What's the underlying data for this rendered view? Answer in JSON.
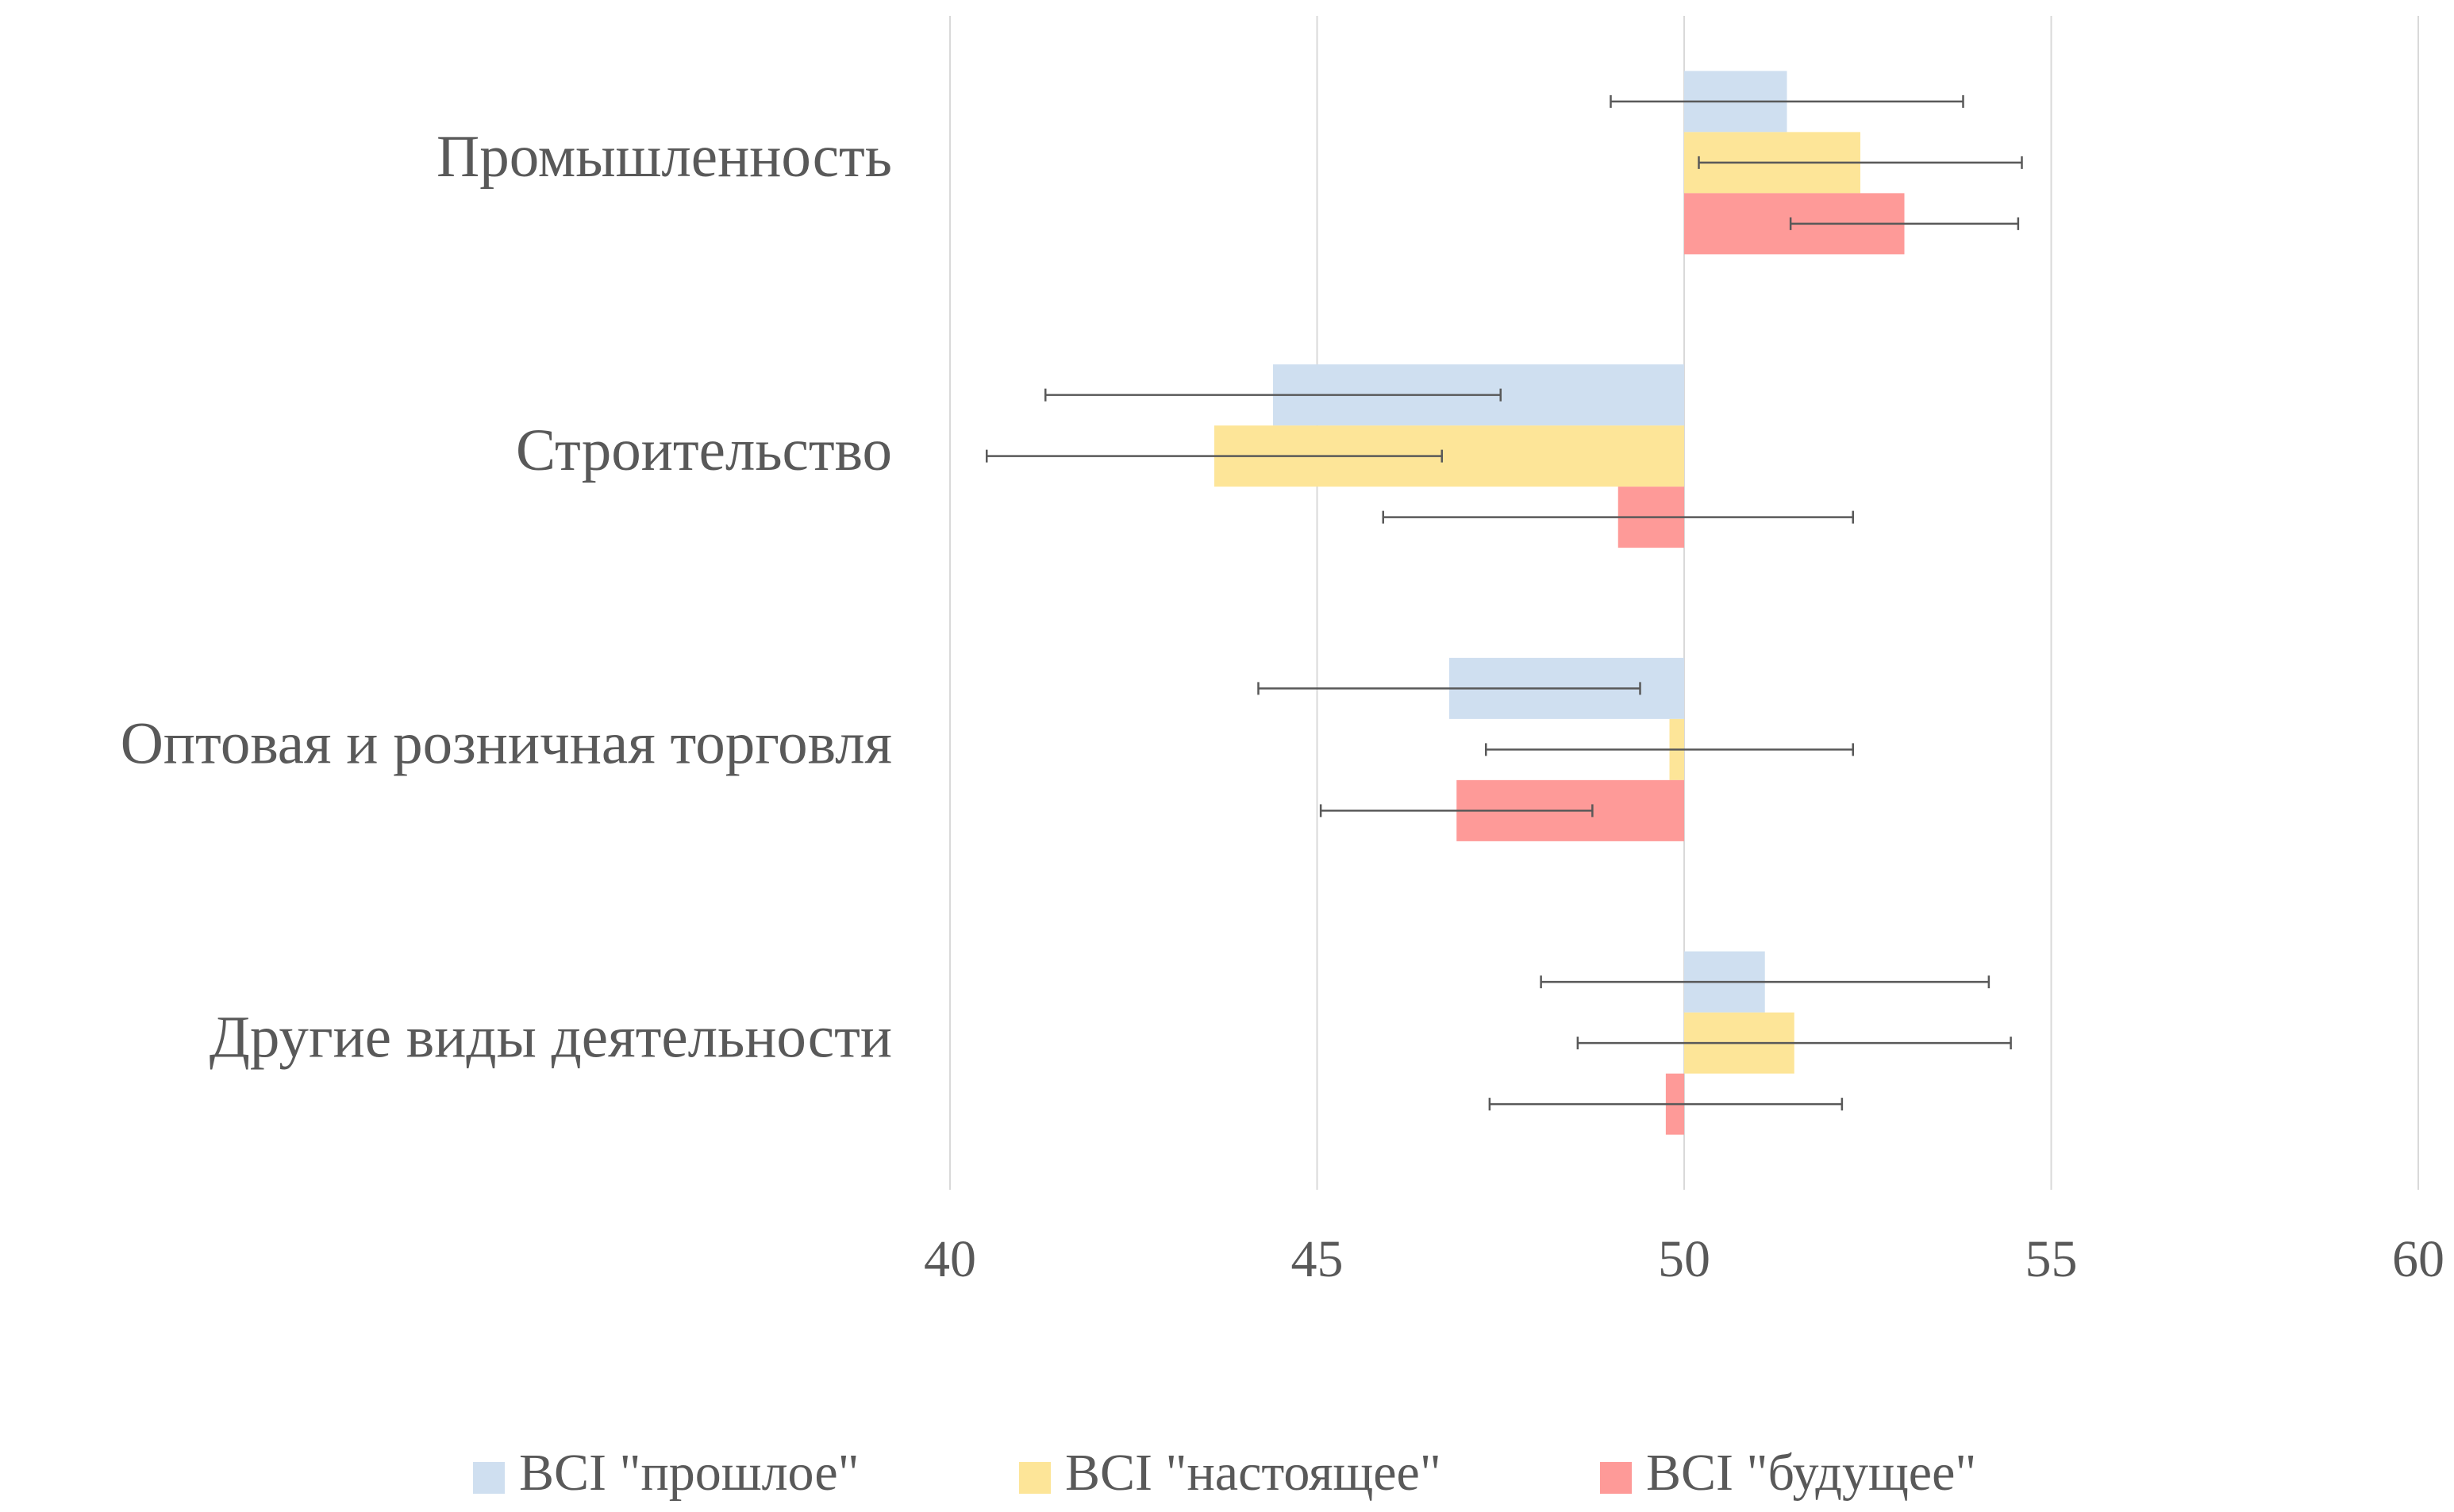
{
  "chart_data": {
    "type": "hbar",
    "categories": [
      "Промышленность",
      "Строительство",
      "Оптовая и розничная торговля",
      "Другие виды деятельности"
    ],
    "base": 50,
    "series": [
      {
        "name": "BCI \"прошлое\"",
        "color": "#cfdff0",
        "values": [
          51.4,
          44.4,
          46.8,
          51.1
        ],
        "errors": [
          2.4,
          3.1,
          2.6,
          3.05
        ]
      },
      {
        "name": "BCI \"настоящее\"",
        "color": "#fde598",
        "values": [
          52.4,
          43.6,
          49.8,
          51.5
        ],
        "errors": [
          2.2,
          3.1,
          2.5,
          2.95
        ]
      },
      {
        "name": "BCI \"будущее\"",
        "color": "#fe9a98",
        "values": [
          53.0,
          49.1,
          46.9,
          49.75
        ],
        "errors": [
          1.55,
          3.2,
          1.85,
          2.4
        ]
      }
    ],
    "xlim": [
      40,
      60
    ],
    "xticks": [
      40,
      45,
      50,
      55,
      60
    ],
    "grid": true,
    "legend": "bottom"
  }
}
